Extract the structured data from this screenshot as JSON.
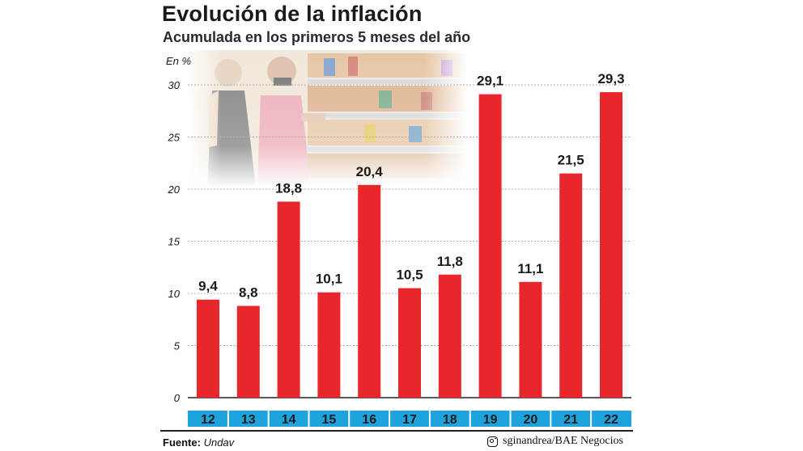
{
  "chart_data": {
    "type": "bar",
    "title": "Evolución de la inflación",
    "subtitle": "Acumulada en los primeros 5 meses del año",
    "ylabel": "En %",
    "xlabel": "",
    "categories": [
      "12",
      "13",
      "14",
      "15",
      "16",
      "17",
      "18",
      "19",
      "20",
      "21",
      "22"
    ],
    "values": [
      9.4,
      8.8,
      18.8,
      10.1,
      20.4,
      10.5,
      11.8,
      29.1,
      11.1,
      21.5,
      29.3
    ],
    "data_labels": [
      "9,4",
      "8,8",
      "18,8",
      "10,1",
      "20,4",
      "10,5",
      "11,8",
      "29,1",
      "11,1",
      "21,5",
      "29,3"
    ],
    "yticks": [
      0,
      5,
      10,
      15,
      20,
      25,
      30
    ],
    "ylim": [
      0,
      30
    ],
    "grid": true,
    "legend": "none",
    "bar_color": "#e8262c",
    "category_band_color": "#1fa3dc"
  },
  "footer": {
    "source_label": "Fuente:",
    "source_value": "Undav",
    "credit_icon": "instagram-icon",
    "credit": "sginandrea/BAE Negocios"
  }
}
